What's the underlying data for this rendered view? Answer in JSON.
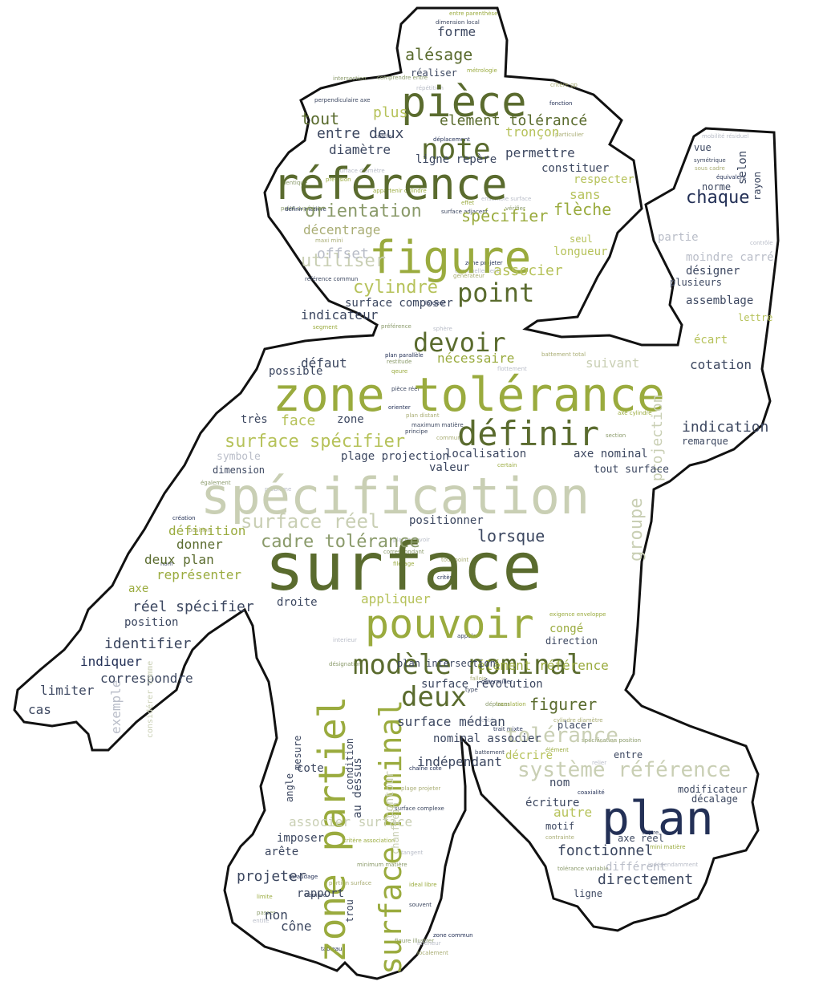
{
  "palette": {
    "olive": "#6e7f3a",
    "olive_dark": "#5a6b2e",
    "lime": "#9aab3e",
    "lime_light": "#b6c25a",
    "sage": "#8a9a6a",
    "pale": "#c9cfb4",
    "pale_grey": "#b9bdc8",
    "navy": "#233056",
    "slate": "#3c4760",
    "khaki": "#a9ad74",
    "outline": "#111111"
  },
  "words": [
    {
      "text": "surface",
      "color": "olive_dark"
    },
    {
      "text": "spécification",
      "color": "pale"
    },
    {
      "text": "zone tolérance",
      "color": "lime"
    },
    {
      "text": "figure",
      "color": "lime"
    },
    {
      "text": "référence",
      "color": "olive_dark"
    },
    {
      "text": "pièce",
      "color": "olive_dark"
    },
    {
      "text": "pouvoir",
      "color": "lime"
    },
    {
      "text": "plan",
      "color": "navy"
    },
    {
      "text": "zone partiel",
      "color": "lime"
    },
    {
      "text": "modèle nominal",
      "color": "olive_dark"
    },
    {
      "text": "définir",
      "color": "olive_dark"
    },
    {
      "text": "surface nominal",
      "color": "lime"
    },
    {
      "text": "note",
      "color": "olive_dark"
    },
    {
      "text": "devoir",
      "color": "olive_dark"
    },
    {
      "text": "point",
      "color": "olive_dark"
    },
    {
      "text": "deux",
      "color": "olive_dark"
    },
    {
      "text": "système référence",
      "color": "pale"
    },
    {
      "text": "surface réel",
      "color": "pale"
    },
    {
      "text": "surface spécifier",
      "color": "lime_light"
    },
    {
      "text": "cadre tolérance",
      "color": "sage"
    },
    {
      "text": "chaque",
      "color": "navy"
    },
    {
      "text": "tolérance",
      "color": "pale"
    },
    {
      "text": "figurer",
      "color": "olive_dark"
    },
    {
      "text": "groupe",
      "color": "pale"
    },
    {
      "text": "projection",
      "color": "pale"
    },
    {
      "text": "cylindre",
      "color": "lime_light"
    },
    {
      "text": "orientation",
      "color": "sage"
    },
    {
      "text": "utiliser",
      "color": "pale"
    },
    {
      "text": "spécifier",
      "color": "lime"
    },
    {
      "text": "flèche",
      "color": "lime"
    },
    {
      "text": "alésage",
      "color": "olive_dark"
    },
    {
      "text": "tout",
      "color": "olive_dark"
    },
    {
      "text": "plus",
      "color": "lime_light"
    },
    {
      "text": "élément tolérancé",
      "color": "olive_dark"
    },
    {
      "text": "entre deux",
      "color": "slate"
    },
    {
      "text": "tronçon",
      "color": "lime_light"
    },
    {
      "text": "diamètre",
      "color": "slate"
    },
    {
      "text": "ligne repère",
      "color": "slate"
    },
    {
      "text": "permettre",
      "color": "slate"
    },
    {
      "text": "constituer",
      "color": "slate"
    },
    {
      "text": "respecter",
      "color": "lime_light"
    },
    {
      "text": "sans",
      "color": "lime_light"
    },
    {
      "text": "forme",
      "color": "slate"
    },
    {
      "text": "réaliser",
      "color": "slate"
    },
    {
      "text": "décentrage",
      "color": "khaki"
    },
    {
      "text": "offset",
      "color": "pale_grey"
    },
    {
      "text": "seul",
      "color": "lime_light"
    },
    {
      "text": "longueur",
      "color": "lime_light"
    },
    {
      "text": "associer",
      "color": "lime_light"
    },
    {
      "text": "nécessaire",
      "color": "lime"
    },
    {
      "text": "indicateur",
      "color": "slate"
    },
    {
      "text": "surface composer",
      "color": "slate"
    },
    {
      "text": "suivant",
      "color": "pale"
    },
    {
      "text": "cotation",
      "color": "slate"
    },
    {
      "text": "défaut",
      "color": "slate"
    },
    {
      "text": "possible",
      "color": "slate"
    },
    {
      "text": "très",
      "color": "slate"
    },
    {
      "text": "face",
      "color": "lime_light"
    },
    {
      "text": "zone",
      "color": "slate"
    },
    {
      "text": "indication",
      "color": "slate"
    },
    {
      "text": "symbole",
      "color": "pale_grey"
    },
    {
      "text": "plage projection",
      "color": "slate"
    },
    {
      "text": "localisation",
      "color": "slate"
    },
    {
      "text": "axe nominal",
      "color": "slate"
    },
    {
      "text": "valeur",
      "color": "slate"
    },
    {
      "text": "tout surface",
      "color": "slate"
    },
    {
      "text": "dimension",
      "color": "slate"
    },
    {
      "text": "positionner",
      "color": "slate"
    },
    {
      "text": "lorsque",
      "color": "slate"
    },
    {
      "text": "définition",
      "color": "lime"
    },
    {
      "text": "donner",
      "color": "olive_dark"
    },
    {
      "text": "deux plan",
      "color": "olive_dark"
    },
    {
      "text": "représenter",
      "color": "lime"
    },
    {
      "text": "axe",
      "color": "lime"
    },
    {
      "text": "réel spécifier",
      "color": "slate"
    },
    {
      "text": "position",
      "color": "slate"
    },
    {
      "text": "identifier",
      "color": "slate"
    },
    {
      "text": "indiquer",
      "color": "navy"
    },
    {
      "text": "correspondre",
      "color": "slate"
    },
    {
      "text": "limiter",
      "color": "slate"
    },
    {
      "text": "cas",
      "color": "slate"
    },
    {
      "text": "exemple",
      "color": "pale_grey"
    },
    {
      "text": "droite",
      "color": "slate"
    },
    {
      "text": "appliquer",
      "color": "lime_light"
    },
    {
      "text": "élément référence",
      "color": "lime"
    },
    {
      "text": "congé",
      "color": "lime"
    },
    {
      "text": "direction",
      "color": "slate"
    },
    {
      "text": "plan intersection",
      "color": "slate"
    },
    {
      "text": "surface révolution",
      "color": "slate"
    },
    {
      "text": "surface médian",
      "color": "slate"
    },
    {
      "text": "nominal associer",
      "color": "slate"
    },
    {
      "text": "placer",
      "color": "slate"
    },
    {
      "text": "indépendant",
      "color": "slate"
    },
    {
      "text": "décrire",
      "color": "lime_light"
    },
    {
      "text": "entre",
      "color": "slate"
    },
    {
      "text": "nom",
      "color": "slate"
    },
    {
      "text": "modificateur",
      "color": "slate"
    },
    {
      "text": "décalage",
      "color": "slate"
    },
    {
      "text": "écriture",
      "color": "slate"
    },
    {
      "text": "autre",
      "color": "lime_light"
    },
    {
      "text": "motif",
      "color": "slate"
    },
    {
      "text": "axe réel",
      "color": "slate"
    },
    {
      "text": "fonctionnel",
      "color": "slate"
    },
    {
      "text": "différent",
      "color": "pale_grey"
    },
    {
      "text": "directement",
      "color": "slate"
    },
    {
      "text": "ligne",
      "color": "slate"
    },
    {
      "text": "associer surface",
      "color": "pale"
    },
    {
      "text": "imposer",
      "color": "slate"
    },
    {
      "text": "arête",
      "color": "slate"
    },
    {
      "text": "projeter",
      "color": "slate"
    },
    {
      "text": "rapport",
      "color": "slate"
    },
    {
      "text": "non",
      "color": "slate"
    },
    {
      "text": "cône",
      "color": "slate"
    },
    {
      "text": "cote",
      "color": "slate"
    },
    {
      "text": "vue",
      "color": "slate"
    },
    {
      "text": "norme",
      "color": "slate"
    },
    {
      "text": "selon",
      "color": "slate"
    },
    {
      "text": "rayon",
      "color": "slate"
    },
    {
      "text": "partie",
      "color": "pale_grey"
    },
    {
      "text": "moindre carré",
      "color": "pale_grey"
    },
    {
      "text": "désigner",
      "color": "slate"
    },
    {
      "text": "plusieurs",
      "color": "slate"
    },
    {
      "text": "assemblage",
      "color": "slate"
    },
    {
      "text": "lettre",
      "color": "lime_light"
    },
    {
      "text": "écart",
      "color": "lime_light"
    },
    {
      "text": "remarque",
      "color": "slate"
    },
    {
      "text": "chanfrein",
      "color": "pale"
    },
    {
      "text": "contour",
      "color": "pale"
    },
    {
      "text": "au dessus",
      "color": "slate"
    },
    {
      "text": "condition",
      "color": "slate"
    },
    {
      "text": "mesure",
      "color": "slate"
    },
    {
      "text": "angle",
      "color": "slate"
    },
    {
      "text": "trou",
      "color": "slate"
    },
    {
      "text": "considérer comme",
      "color": "pale"
    },
    {
      "text": "liste",
      "color": "pale_grey"
    }
  ],
  "tiny_words": [
    "dimension local",
    "entre parenthèse",
    "intersection",
    "surface diamètre",
    "fonction",
    "critère gp",
    "perpendiculaire axe",
    "métrologie",
    "comprendre entre",
    "répétition",
    "déplacement",
    "particulier",
    "cercle",
    "précision",
    "point supérieur",
    "mobilité résiduel",
    "équivalent",
    "sous cadre",
    "symétrique",
    "appartenir cylindre",
    "identique",
    "ensemble surface",
    "définir matière",
    "maxi mini",
    "surface adjacent",
    "effet",
    "vérifier",
    "éventuellement",
    "zone projeter",
    "générateur",
    "référence commun",
    "segment",
    "préférence",
    "sphère",
    "plan parallèle",
    "battement total",
    "pièce réel",
    "qeure",
    "restitude",
    "flottement",
    "orienter",
    "plan distant",
    "maximum matière",
    "axe cylindre",
    "section",
    "contrôle",
    "largeur",
    "commun",
    "principe",
    "certain",
    "également",
    "problème",
    "création",
    "position",
    "nom",
    "filetage",
    "correspondant",
    "placer devoir",
    "critère",
    "tout point",
    "appeler",
    "exigence enveloppe",
    "désignation",
    "interieur",
    "déterminer",
    "falloir",
    "type",
    "translation",
    "déplacer",
    "côté",
    "trait mixte",
    "cylindre diamètre",
    "battement",
    "élément",
    "spécification position",
    "relier",
    "chaîne cote",
    "plage projeter",
    "surface complexe",
    "critère association",
    "minimum matière",
    "tangent",
    "coaxialité",
    "contrainte",
    "suivre",
    "mini matière",
    "tolérance variable",
    "indépendamment",
    "taraudage",
    "portion surface",
    "nombre",
    "limite",
    "passer",
    "entité",
    "tableau",
    "localement",
    "souvent",
    "ideal libre",
    "figure illustrer",
    "inférieur",
    "zone commun"
  ]
}
